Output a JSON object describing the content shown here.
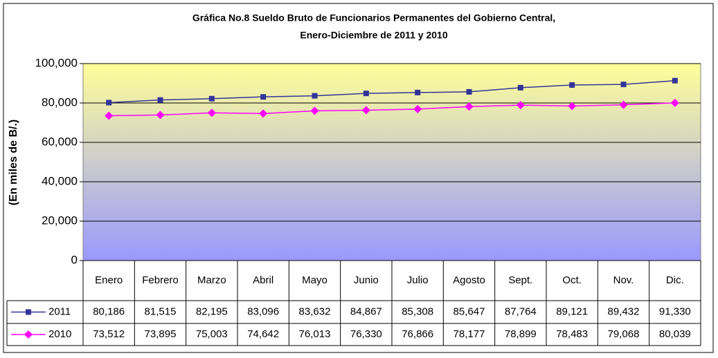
{
  "chart_data": {
    "type": "line",
    "title_lines": [
      "Gráfica No.8 Sueldo Bruto de Funcionarios Permanentes del Gobierno Central,",
      "Enero-Diciembre de 2011 y 2010"
    ],
    "y_label": "(En miles de B/.)",
    "categories": [
      "Enero",
      "Febrero",
      "Marzo",
      "Abril",
      "Mayo",
      "Junio",
      "Julio",
      "Agosto",
      "Sept.",
      "Oct.",
      "Nov.",
      "Dic."
    ],
    "series": [
      {
        "name": "2011",
        "color": "#333399",
        "marker": "square",
        "values": [
          80186,
          81515,
          82195,
          83096,
          83632,
          84867,
          85308,
          85647,
          87764,
          89121,
          89432,
          91330
        ],
        "value_labels": [
          "80,186",
          "81,515",
          "82,195",
          "83,096",
          "83,632",
          "84,867",
          "85,308",
          "85,647",
          "87,764",
          "89,121",
          "89,432",
          "91,330"
        ]
      },
      {
        "name": "2010",
        "color": "#ff00ff",
        "marker": "diamond",
        "values": [
          73512,
          73895,
          75003,
          74642,
          76013,
          76330,
          76866,
          78177,
          78899,
          78483,
          79068,
          80039
        ],
        "value_labels": [
          "73,512",
          "73,895",
          "75,003",
          "74,642",
          "76,013",
          "76,330",
          "76,866",
          "78,177",
          "78,899",
          "78,483",
          "79,068",
          "80,039"
        ]
      }
    ],
    "ylim": [
      0,
      100000
    ],
    "yticks": [
      0,
      {
        "value": 20000,
        "label": "20,000"
      },
      {
        "value": 40000,
        "label": "40,000"
      },
      {
        "value": 60000,
        "label": "60,000"
      },
      {
        "value": 80000,
        "label": "80,000"
      },
      {
        "value": 100000,
        "label": "100,000"
      }
    ],
    "grid": true
  }
}
